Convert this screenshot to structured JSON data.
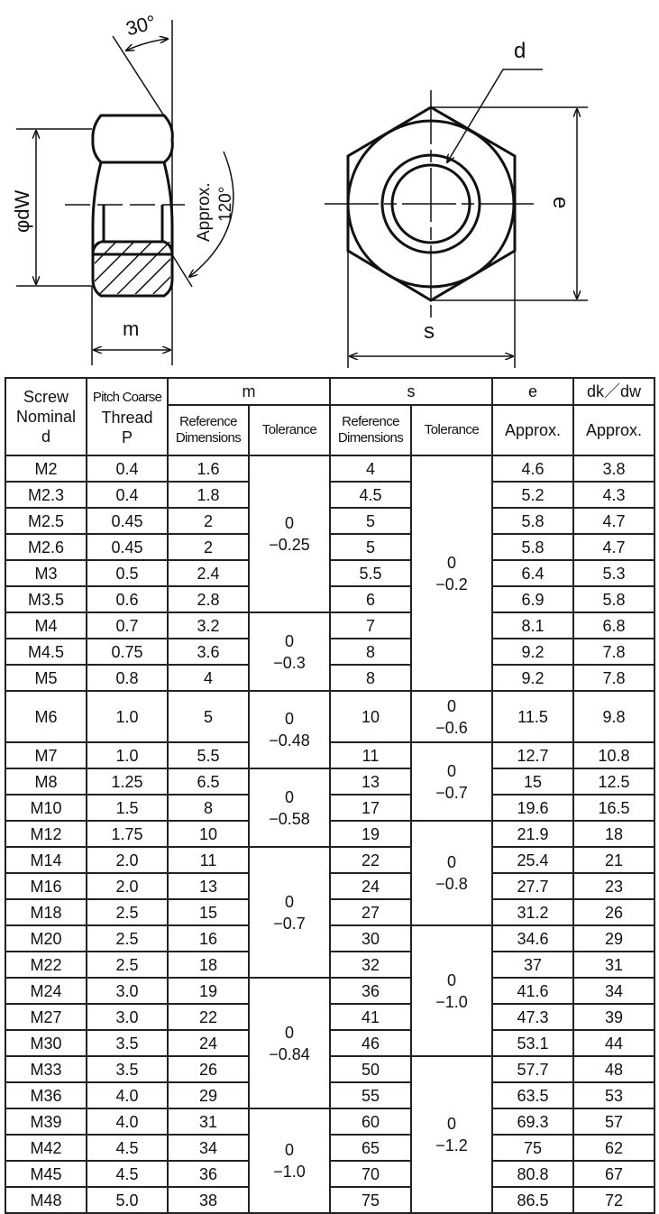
{
  "drawing": {
    "labels": {
      "angle_chamfer": "30°",
      "washer_diameter": "φdW",
      "height": "m",
      "approx": "Approx.",
      "angle_bearing": "120°",
      "thread_diameter": "d",
      "width_across_corners": "e",
      "width_across_flats": "s"
    }
  },
  "table": {
    "headers": {
      "screw": [
        "Screw",
        "Nominal",
        "d"
      ],
      "pitch": [
        "Pitch Coarse",
        "Thread",
        "P"
      ],
      "m": "m",
      "s": "s",
      "e": "e",
      "dk": "dk／dw",
      "reference": [
        "Reference",
        "Dimensions"
      ],
      "tolerance": "Tolerance",
      "approx": "Approx."
    },
    "rows": [
      {
        "d": "M2",
        "p": "0.4",
        "m": "1.6",
        "s": "4",
        "e": "4.6",
        "dw": "3.8"
      },
      {
        "d": "M2.3",
        "p": "0.4",
        "m": "1.8",
        "s": "4.5",
        "e": "5.2",
        "dw": "4.3"
      },
      {
        "d": "M2.5",
        "p": "0.45",
        "m": "2",
        "s": "5",
        "e": "5.8",
        "dw": "4.7"
      },
      {
        "d": "M2.6",
        "p": "0.45",
        "m": "2",
        "s": "5",
        "e": "5.8",
        "dw": "4.7"
      },
      {
        "d": "M3",
        "p": "0.5",
        "m": "2.4",
        "s": "5.5",
        "e": "6.4",
        "dw": "5.3"
      },
      {
        "d": "M3.5",
        "p": "0.6",
        "m": "2.8",
        "s": "6",
        "e": "6.9",
        "dw": "5.8"
      },
      {
        "d": "M4",
        "p": "0.7",
        "m": "3.2",
        "s": "7",
        "e": "8.1",
        "dw": "6.8"
      },
      {
        "d": "M4.5",
        "p": "0.75",
        "m": "3.6",
        "s": "8",
        "e": "9.2",
        "dw": "7.8"
      },
      {
        "d": "M5",
        "p": "0.8",
        "m": "4",
        "s": "8",
        "e": "9.2",
        "dw": "7.8"
      },
      {
        "d": "M6",
        "p": "1.0",
        "m": "5",
        "s": "10",
        "e": "11.5",
        "dw": "9.8"
      },
      {
        "d": "M7",
        "p": "1.0",
        "m": "5.5",
        "s": "11",
        "e": "12.7",
        "dw": "10.8"
      },
      {
        "d": "M8",
        "p": "1.25",
        "m": "6.5",
        "s": "13",
        "e": "15",
        "dw": "12.5"
      },
      {
        "d": "M10",
        "p": "1.5",
        "m": "8",
        "s": "17",
        "e": "19.6",
        "dw": "16.5"
      },
      {
        "d": "M12",
        "p": "1.75",
        "m": "10",
        "s": "19",
        "e": "21.9",
        "dw": "18"
      },
      {
        "d": "M14",
        "p": "2.0",
        "m": "11",
        "s": "22",
        "e": "25.4",
        "dw": "21"
      },
      {
        "d": "M16",
        "p": "2.0",
        "m": "13",
        "s": "24",
        "e": "27.7",
        "dw": "23"
      },
      {
        "d": "M18",
        "p": "2.5",
        "m": "15",
        "s": "27",
        "e": "31.2",
        "dw": "26"
      },
      {
        "d": "M20",
        "p": "2.5",
        "m": "16",
        "s": "30",
        "e": "34.6",
        "dw": "29"
      },
      {
        "d": "M22",
        "p": "2.5",
        "m": "18",
        "s": "32",
        "e": "37",
        "dw": "31"
      },
      {
        "d": "M24",
        "p": "3.0",
        "m": "19",
        "s": "36",
        "e": "41.6",
        "dw": "34"
      },
      {
        "d": "M27",
        "p": "3.0",
        "m": "22",
        "s": "41",
        "e": "47.3",
        "dw": "39"
      },
      {
        "d": "M30",
        "p": "3.5",
        "m": "24",
        "s": "46",
        "e": "53.1",
        "dw": "44"
      },
      {
        "d": "M33",
        "p": "3.5",
        "m": "26",
        "s": "50",
        "e": "57.7",
        "dw": "48"
      },
      {
        "d": "M36",
        "p": "4.0",
        "m": "29",
        "s": "55",
        "e": "63.5",
        "dw": "53"
      },
      {
        "d": "M39",
        "p": "4.0",
        "m": "31",
        "s": "60",
        "e": "69.3",
        "dw": "57"
      },
      {
        "d": "M42",
        "p": "4.5",
        "m": "34",
        "s": "65",
        "e": "75",
        "dw": "62"
      },
      {
        "d": "M45",
        "p": "4.5",
        "m": "36",
        "s": "70",
        "e": "80.8",
        "dw": "67"
      },
      {
        "d": "M48",
        "p": "5.0",
        "m": "38",
        "s": "75",
        "e": "86.5",
        "dw": "72"
      }
    ],
    "m_tolerance_groups": [
      {
        "rows": 6,
        "upper": "0",
        "lower": "−0.25"
      },
      {
        "rows": 3,
        "upper": "0",
        "lower": "−0.3"
      },
      {
        "rows": 2,
        "upper": "0",
        "lower": "−0.48"
      },
      {
        "rows": 3,
        "upper": "0",
        "lower": "−0.58"
      },
      {
        "rows": 5,
        "upper": "0",
        "lower": "−0.7"
      },
      {
        "rows": 5,
        "upper": "0",
        "lower": "−0.84"
      },
      {
        "rows": 4,
        "upper": "0",
        "lower": "−1.0"
      }
    ],
    "s_tolerance_groups": [
      {
        "rows": 9,
        "upper": "0",
        "lower": "−0.2"
      },
      {
        "rows": 1,
        "upper": "0",
        "lower": "−0.6"
      },
      {
        "rows": 3,
        "upper": "0",
        "lower": "−0.7"
      },
      {
        "rows": 4,
        "upper": "0",
        "lower": "−0.8"
      },
      {
        "rows": 5,
        "upper": "0",
        "lower": "−1.0"
      },
      {
        "rows": 6,
        "upper": "0",
        "lower": "−1.2"
      }
    ]
  }
}
